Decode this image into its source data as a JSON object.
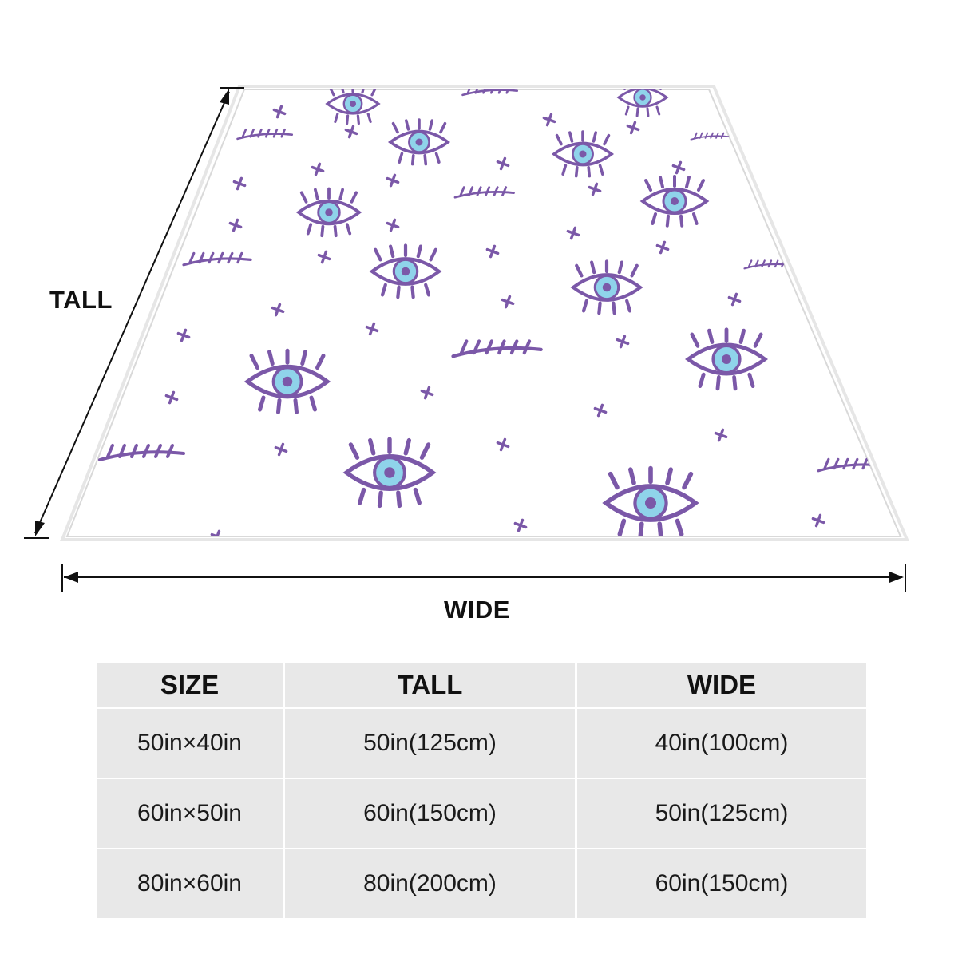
{
  "dimension_labels": {
    "tall": "TALL",
    "wide": "WIDE"
  },
  "blanket": {
    "pattern": [
      "evil-eye-icon",
      "closed-eye-lashes-icon",
      "sparkle-cross-icon"
    ],
    "colors": {
      "outline": "#7b58a8",
      "iris": "#8fd3ea",
      "pupil": "#7b58a8",
      "fabric": "#ffffff",
      "fringe": "#d8d8d8"
    }
  },
  "size_table": {
    "headers": [
      "SIZE",
      "TALL",
      "WIDE"
    ],
    "rows": [
      [
        "50in×40in",
        "50in(125cm)",
        "40in(100cm)"
      ],
      [
        "60in×50in",
        "60in(150cm)",
        "50in(125cm)"
      ],
      [
        "80in×60in",
        "80in(200cm)",
        "60in(150cm)"
      ]
    ],
    "colors": {
      "cell_bg": "#e8e8e8",
      "text": "#1a1a1a"
    }
  }
}
